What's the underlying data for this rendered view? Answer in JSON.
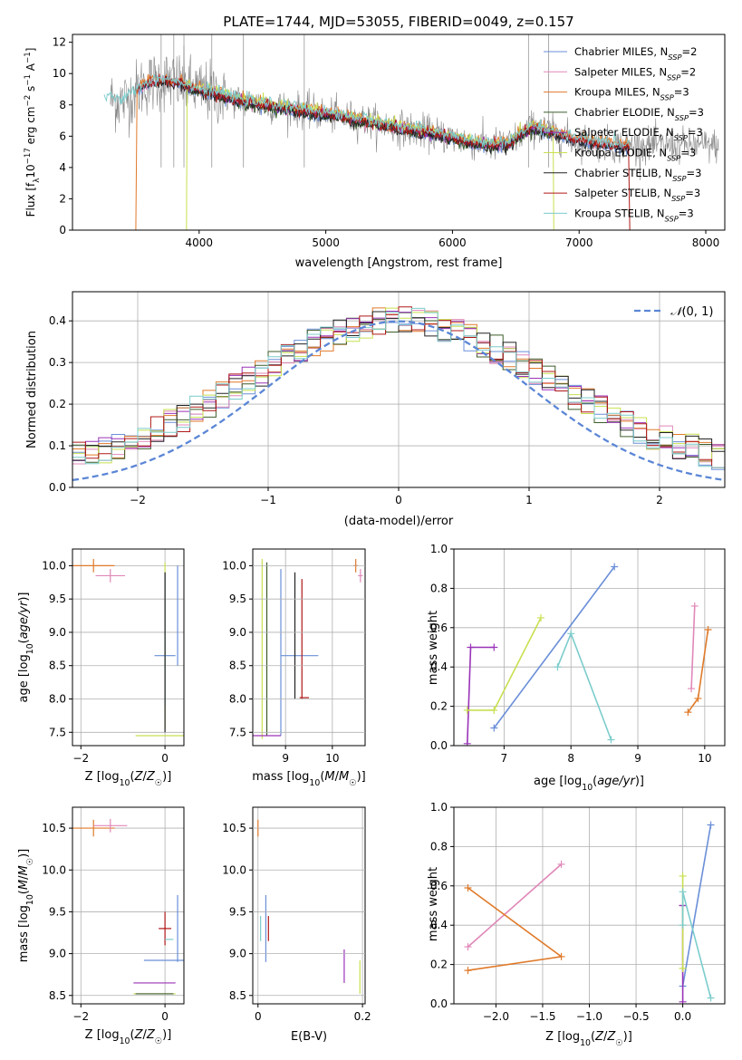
{
  "colors": {
    "chabrier_miles": "#6a8fd8",
    "salpeter_miles": "#e088b8",
    "kroupa_miles": "#e07a2a",
    "chabrier_elodie": "#3c5c2a",
    "salpeter_elodie": "#9a33b8",
    "kroupa_elodie": "#c8e050",
    "chabrier_stelib": "#222222",
    "salpeter_stelib": "#b01818",
    "kroupa_stelib": "#7ccccc",
    "data": "#888888",
    "normal": "#5b86d6"
  },
  "series_names": [
    "Chabrier MILES",
    "Salpeter MILES",
    "Kroupa MILES",
    "Chabrier ELODIE",
    "Salpeter ELODIE",
    "Kroupa ELODIE",
    "Chabrier STELIB",
    "Salpeter STELIB",
    "Kroupa STELIB"
  ],
  "chart_data": [
    {
      "id": "spectrum",
      "type": "line",
      "title": "PLATE=1744, MJD=53055, FIBERID=0049, z=0.157",
      "xlabel": "wavelength [Angstrom, rest frame]",
      "ylabel_prefix": "Flux [f",
      "ylabel_main": "10",
      "ylabel_rest": " erg cm",
      "xlim": [
        3000,
        8150
      ],
      "ylim": [
        0,
        12.5
      ],
      "xticks": [
        4000,
        5000,
        6000,
        7000,
        8000
      ],
      "yticks": [
        0,
        2,
        4,
        6,
        8,
        10,
        12
      ],
      "grid": false,
      "legend_placement": "top-right",
      "legend": [
        {
          "name": "Chabrier MILES",
          "nssp": "2"
        },
        {
          "name": "Salpeter MILES",
          "nssp": "2"
        },
        {
          "name": "Kroupa MILES",
          "nssp": "3"
        },
        {
          "name": "Chabrier ELODIE",
          "nssp": "3"
        },
        {
          "name": "Salpeter ELODIE",
          "nssp": "3"
        },
        {
          "name": "Kroupa ELODIE",
          "nssp": "3"
        },
        {
          "name": "Chabrier STELIB",
          "nssp": "3"
        },
        {
          "name": "Salpeter STELIB",
          "nssp": "3"
        },
        {
          "name": "Kroupa STELIB",
          "nssp": "3"
        }
      ],
      "continuum_x": [
        3250,
        3400,
        3550,
        3700,
        3850,
        4000,
        4150,
        4300,
        4500,
        4700,
        5000,
        5300,
        5600,
        5900,
        6100,
        6300,
        6450,
        6550,
        6650,
        6750,
        6900,
        7100,
        7300
      ],
      "continuum_y": [
        8.4,
        8.2,
        9.2,
        9.6,
        9.4,
        8.9,
        8.7,
        8.3,
        8.0,
        7.8,
        7.4,
        7.0,
        6.5,
        6.1,
        5.7,
        5.4,
        5.5,
        6.2,
        6.6,
        6.3,
        5.9,
        5.6,
        5.4
      ]
    },
    {
      "id": "residuals",
      "type": "histogram",
      "xlabel": "(data-model)/error",
      "ylabel": "Normed distribution",
      "xlim": [
        -2.5,
        2.5
      ],
      "ylim": [
        0,
        0.47
      ],
      "xticks": [
        -2,
        -1,
        0,
        1,
        2
      ],
      "yticks": [
        0.0,
        0.1,
        0.2,
        0.3,
        0.4
      ],
      "grid": true,
      "legend_label": "N(0,1)",
      "legend_placement": "top-right",
      "bin_width": 0.1
    },
    {
      "id": "age-vs-Z",
      "type": "errorbar",
      "xlabel": "Z [log10(Z/Z☉)]",
      "ylabel": "age [log10(age/yr)]",
      "xlim": [
        -2.2,
        0.45
      ],
      "ylim": [
        7.3,
        10.25
      ],
      "xticks": [
        -2,
        0
      ],
      "yticks": [
        7.5,
        8.0,
        8.5,
        9.0,
        9.5,
        10.0
      ],
      "grid": true
    },
    {
      "id": "age-vs-mass",
      "type": "errorbar",
      "xlabel": "mass [log10(M/M☉)]",
      "xlim": [
        8.3,
        10.7
      ],
      "ylim": [
        7.3,
        10.25
      ],
      "xticks": [
        9,
        10
      ],
      "grid": true
    },
    {
      "id": "weight-vs-age",
      "type": "line",
      "xlabel": "age  [log10(age/yr)]",
      "ylabel": "mass weight",
      "xlim": [
        6.25,
        10.3
      ],
      "ylim": [
        0.0,
        1.0
      ],
      "xticks": [
        7,
        8,
        9,
        10
      ],
      "yticks": [
        0.0,
        0.2,
        0.4,
        0.6,
        0.8,
        1.0
      ],
      "grid": true
    },
    {
      "id": "mass-vs-Z",
      "type": "errorbar",
      "xlabel": "Z [log10(Z/Z☉)]",
      "ylabel": "mass [log10(M/M☉)]",
      "xlim": [
        -2.2,
        0.45
      ],
      "ylim": [
        8.4,
        10.75
      ],
      "xticks": [
        -2,
        0
      ],
      "yticks": [
        8.5,
        9.0,
        9.5,
        10.0,
        10.5
      ],
      "grid": true
    },
    {
      "id": "mass-vs-EBV",
      "type": "errorbar",
      "xlabel": "E(B-V)",
      "xlim": [
        -0.01,
        0.205
      ],
      "ylim": [
        8.4,
        10.75
      ],
      "xticks": [
        0.0,
        0.2
      ],
      "grid": true
    },
    {
      "id": "weight-vs-Z",
      "type": "line",
      "xlabel": "Z [log10(Z/Z☉)]",
      "ylabel": "mass weight",
      "xlim": [
        -2.45,
        0.45
      ],
      "ylim": [
        0.0,
        1.0
      ],
      "xticks": [
        -2.0,
        -1.5,
        -1.0,
        -0.5,
        0.0
      ],
      "yticks": [
        0.0,
        0.2,
        0.4,
        0.6,
        0.8,
        1.0
      ],
      "grid": true
    }
  ],
  "panel_points": {
    "chabrier_miles": {
      "age": [
        6.85,
        8.65
      ],
      "z": [
        0.0,
        0.3
      ],
      "w": [
        0.09,
        0.91
      ]
    },
    "salpeter_miles": {
      "age": [
        9.8,
        9.85
      ],
      "z": [
        -2.3,
        -1.3
      ],
      "w": [
        0.29,
        0.71
      ]
    },
    "kroupa_miles": {
      "age": [
        9.75,
        9.9,
        10.05
      ],
      "z": [
        -2.3,
        -1.3,
        -2.3
      ],
      "w": [
        0.17,
        0.24,
        0.59
      ]
    },
    "salpeter_elodie": {
      "age": [
        6.45,
        6.5,
        6.85
      ],
      "z": [
        0.0,
        0.0,
        0.0
      ],
      "w": [
        0.01,
        0.5,
        0.5
      ]
    },
    "kroupa_elodie": {
      "age": [
        6.45,
        6.85,
        7.55
      ],
      "z": [
        0.0,
        0.0,
        0.0
      ],
      "w": [
        0.18,
        0.18,
        0.65
      ]
    },
    "kroupa_stelib": {
      "age": [
        7.8,
        8.0,
        8.6
      ],
      "z": [
        0.0,
        0.0,
        0.3
      ],
      "w": [
        0.4,
        0.57,
        0.03
      ]
    }
  },
  "errorbars": {
    "age_z": [
      {
        "s": "kroupa_miles",
        "x": -1.7,
        "y": 10.0,
        "xe": 0.5,
        "ye": 0.1
      },
      {
        "s": "salpeter_miles",
        "x": -1.3,
        "y": 9.85,
        "xe": 0.35,
        "ye": 0.1
      },
      {
        "s": "chabrier_miles",
        "x": 0.0,
        "y": 8.65,
        "xe": 0.25,
        "ye": 0.2
      },
      {
        "s": "chabrier_miles",
        "x": 0.3,
        "y": 9.25,
        "xe": 0.0,
        "ye": 0.75
      },
      {
        "s": "kroupa_elodie",
        "x": 0.0,
        "y": 7.45,
        "xe": 0.7,
        "ye": 0.0
      },
      {
        "s": "kroupa_elodie",
        "x": 0.0,
        "y": 8.8,
        "xe": 0.0,
        "ye": 1.25
      },
      {
        "s": "kroupa_stelib",
        "x": 0.0,
        "y": 8.9,
        "xe": 0.0,
        "ye": 1.0
      },
      {
        "s": "chabrier_stelib",
        "x": 0.0,
        "y": 8.7,
        "xe": 0.0,
        "ye": 1.2
      }
    ],
    "age_mass": [
      {
        "s": "kroupa_miles",
        "x": 10.5,
        "y": 10.0,
        "xe": 0.05,
        "ye": 0.1
      },
      {
        "s": "salpeter_miles",
        "x": 10.6,
        "y": 9.85,
        "xe": 0.05,
        "ye": 0.1
      },
      {
        "s": "chabrier_miles",
        "x": 9.3,
        "y": 8.65,
        "xe": 0.4,
        "ye": 0.0
      },
      {
        "s": "chabrier_miles",
        "x": 8.9,
        "y": 8.7,
        "xe": 0.0,
        "ye": 1.25
      },
      {
        "s": "kroupa_elodie",
        "x": 8.5,
        "y": 8.75,
        "xe": 0.0,
        "ye": 1.35
      },
      {
        "s": "chabrier_elodie",
        "x": 8.6,
        "y": 8.75,
        "xe": 0.0,
        "ye": 1.3
      },
      {
        "s": "chabrier_stelib",
        "x": 9.2,
        "y": 8.95,
        "xe": 0.0,
        "ye": 0.95
      },
      {
        "s": "salpeter_stelib",
        "x": 9.35,
        "y": 8.9,
        "xe": 0.0,
        "ye": 0.9
      },
      {
        "s": "salpeter_stelib",
        "x": 9.4,
        "y": 8.02,
        "xe": 0.1,
        "ye": 0.0
      },
      {
        "s": "salpeter_elodie",
        "x": 8.6,
        "y": 7.45,
        "xe": 0.3,
        "ye": 0.0
      }
    ],
    "mass_z": [
      {
        "s": "kroupa_miles",
        "x": -1.7,
        "y": 10.5,
        "xe": 0.5,
        "ye": 0.1
      },
      {
        "s": "salpeter_miles",
        "x": -1.3,
        "y": 10.53,
        "xe": 0.4,
        "ye": 0.08
      },
      {
        "s": "chabrier_miles",
        "x": 0.0,
        "y": 8.92,
        "xe": 0.5,
        "ye": 0.0
      },
      {
        "s": "chabrier_miles",
        "x": 0.3,
        "y": 9.3,
        "xe": 0.0,
        "ye": 0.4
      },
      {
        "s": "salpeter_stelib",
        "x": 0.0,
        "y": 9.3,
        "xe": 0.15,
        "ye": 0.2
      },
      {
        "s": "kroupa_stelib",
        "x": 0.1,
        "y": 9.17,
        "xe": 0.1,
        "ye": 0.0
      },
      {
        "s": "salpeter_elodie",
        "x": -0.25,
        "y": 8.65,
        "xe": 0.5,
        "ye": 0.0
      },
      {
        "s": "kroupa_elodie",
        "x": -0.25,
        "y": 8.52,
        "xe": 0.5,
        "ye": 0.0
      },
      {
        "s": "chabrier_elodie",
        "x": -0.25,
        "y": 8.52,
        "xe": 0.45,
        "ye": 0.0
      }
    ],
    "mass_ebv": [
      {
        "s": "kroupa_miles",
        "x": 0.0,
        "y": 10.5,
        "xe": 0.0,
        "ye": 0.1
      },
      {
        "s": "chabrier_miles",
        "x": 0.015,
        "y": 9.3,
        "xe": 0.0,
        "ye": 0.4
      },
      {
        "s": "kroupa_stelib",
        "x": 0.005,
        "y": 9.3,
        "xe": 0.0,
        "ye": 0.15
      },
      {
        "s": "salpeter_stelib",
        "x": 0.02,
        "y": 9.3,
        "xe": 0.0,
        "ye": 0.15
      },
      {
        "s": "salpeter_elodie",
        "x": 0.165,
        "y": 8.85,
        "xe": 0.0,
        "ye": 0.2
      },
      {
        "s": "kroupa_elodie",
        "x": 0.195,
        "y": 8.72,
        "xe": 0.0,
        "ye": 0.2
      }
    ]
  }
}
